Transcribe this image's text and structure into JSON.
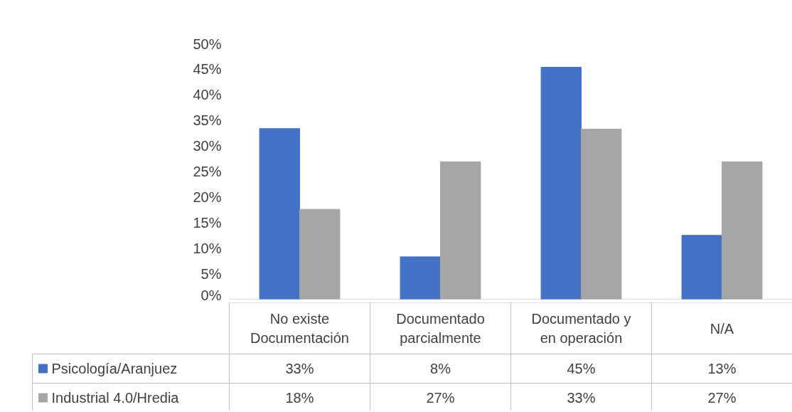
{
  "chart_data": {
    "type": "bar",
    "categories": [
      "No existe Documentación",
      "Documentado parcialmente",
      "Documentado y en operación",
      "N/A"
    ],
    "series": [
      {
        "name": "Psicología/Aranjuez",
        "color": "#4472c4",
        "values": [
          33.4,
          8.3,
          45.4,
          12.5
        ],
        "value_labels": [
          "33%",
          "8%",
          "45%",
          "13%"
        ]
      },
      {
        "name": "Industrial 4.0/Hredia",
        "color": "#a5a5a5",
        "values": [
          17.6,
          26.9,
          33.3,
          26.9
        ],
        "value_labels": [
          "18%",
          "27%",
          "33%",
          "27%"
        ]
      }
    ],
    "ylim": [
      0,
      50
    ],
    "yticks": [
      {
        "value": 0,
        "label": "0%"
      },
      {
        "value": 5,
        "label": "5%"
      },
      {
        "value": 10,
        "label": "10%"
      },
      {
        "value": 15,
        "label": "15%"
      },
      {
        "value": 20,
        "label": "20%"
      },
      {
        "value": 25,
        "label": "25%"
      },
      {
        "value": 30,
        "label": "30%"
      },
      {
        "value": 35,
        "label": "35%"
      },
      {
        "value": 40,
        "label": "40%"
      },
      {
        "value": 45,
        "label": "45%"
      },
      {
        "value": 50,
        "label": "50%"
      }
    ],
    "grid": false,
    "legend": "bottom"
  }
}
